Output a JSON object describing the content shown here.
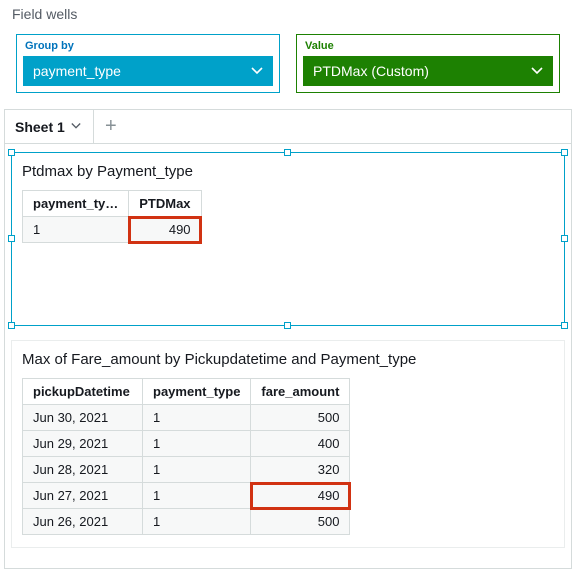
{
  "fieldWells": {
    "heading": "Field wells",
    "groupBy": {
      "label": "Group by",
      "pill": "payment_type"
    },
    "value": {
      "label": "Value",
      "pill": "PTDMax (Custom)"
    }
  },
  "sheets": {
    "activeTab": "Sheet 1"
  },
  "visual1": {
    "title": "Ptdmax by Payment_type",
    "columns": [
      "payment_ty…",
      "PTDMax"
    ],
    "row": {
      "payment_type": "1",
      "ptdmax": "490"
    }
  },
  "visual2": {
    "title": "Max of Fare_amount by Pickupdatetime and Payment_type",
    "columns": [
      "pickupDatetime",
      "payment_type",
      "fare_amount"
    ],
    "rows": [
      {
        "date": "Jun 30, 2021",
        "ptype": "1",
        "fare": "500",
        "hl": false
      },
      {
        "date": "Jun 29, 2021",
        "ptype": "1",
        "fare": "400",
        "hl": false
      },
      {
        "date": "Jun 28, 2021",
        "ptype": "1",
        "fare": "320",
        "hl": false
      },
      {
        "date": "Jun 27, 2021",
        "ptype": "1",
        "fare": "490",
        "hl": true
      },
      {
        "date": "Jun 26, 2021",
        "ptype": "1",
        "fare": "500",
        "hl": false
      }
    ]
  },
  "colors": {
    "blue": "#00a1c9",
    "green": "#1d8102",
    "redOutline": "#d13212"
  }
}
